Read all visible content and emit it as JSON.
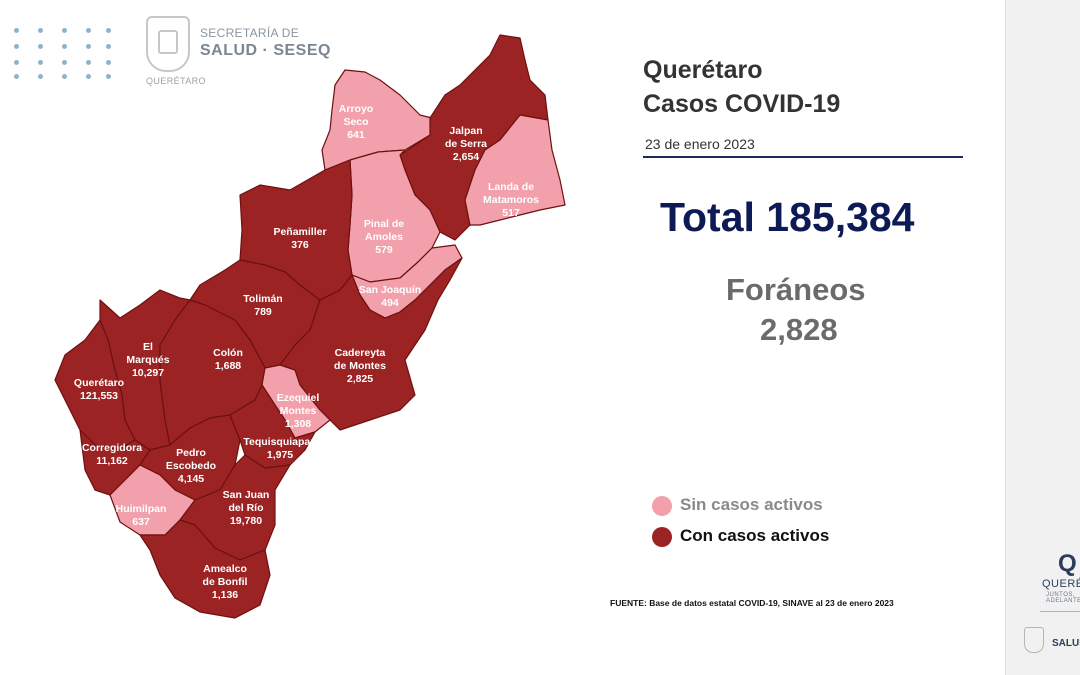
{
  "header": {
    "org_top": "SECRETARÍA DE",
    "org_main": "SALUD · SESEQ",
    "org_sub": "QUERÉTARO"
  },
  "title": {
    "line1": "Querétaro",
    "line2": "Casos COVID-19",
    "date": "23 de enero 2023"
  },
  "totals": {
    "total_text": "Total 185,384",
    "foraneos_label": "Foráneos",
    "foraneos_value": "2,828"
  },
  "legend": {
    "no_active": "Sin casos activos",
    "active": "Con casos activos"
  },
  "source": "FUENTE:  Base de datos estatal  COVID-19,  SINAVE  al 23 de enero 2023",
  "colors": {
    "no_active": "#f2a0ab",
    "active": "#9c2323",
    "title_dark": "#0d1a55"
  },
  "municipalities": [
    {
      "name": "Arroyo Seco",
      "lines": [
        "Arroyo",
        "Seco"
      ],
      "cases": "641",
      "status": "no_active"
    },
    {
      "name": "Jalpan de Serra",
      "lines": [
        "Jalpan",
        "de Serra"
      ],
      "cases": "2,654",
      "status": "active"
    },
    {
      "name": "Landa de Matamoros",
      "lines": [
        "Landa de",
        "Matamoros"
      ],
      "cases": "517",
      "status": "no_active"
    },
    {
      "name": "Pinal de Amoles",
      "lines": [
        "Pinal de",
        "Amoles"
      ],
      "cases": "579",
      "status": "no_active"
    },
    {
      "name": "Peñamiller",
      "lines": [
        "Peñamiller"
      ],
      "cases": "376",
      "status": "active"
    },
    {
      "name": "San Joaquín",
      "lines": [
        "San Joaquín"
      ],
      "cases": "494",
      "status": "no_active"
    },
    {
      "name": "Tolimán",
      "lines": [
        "Tolimán"
      ],
      "cases": "789",
      "status": "active"
    },
    {
      "name": "El Marqués",
      "lines": [
        "El",
        "Marqués"
      ],
      "cases": "10,297",
      "status": "active"
    },
    {
      "name": "Colón",
      "lines": [
        "Colón"
      ],
      "cases": "1,688",
      "status": "active"
    },
    {
      "name": "Cadereyta de Montes",
      "lines": [
        "Cadereyta",
        "de Montes"
      ],
      "cases": "2,825",
      "status": "active"
    },
    {
      "name": "Querétaro",
      "lines": [
        "Querétaro"
      ],
      "cases": "121,553",
      "status": "active"
    },
    {
      "name": "Ezequiel Montes",
      "lines": [
        "Ezequiel",
        "Montes"
      ],
      "cases": "1,308",
      "status": "no_active"
    },
    {
      "name": "Corregidora",
      "lines": [
        "Corregidora"
      ],
      "cases": "11,162",
      "status": "active"
    },
    {
      "name": "Pedro Escobedo",
      "lines": [
        "Pedro",
        "Escobedo"
      ],
      "cases": "4,145",
      "status": "active"
    },
    {
      "name": "Tequisquiapan",
      "lines": [
        "Tequisquiapan"
      ],
      "cases": "1,975",
      "status": "active"
    },
    {
      "name": "Huimilpan",
      "lines": [
        "Huimilpan"
      ],
      "cases": "637",
      "status": "no_active"
    },
    {
      "name": "San Juan del Río",
      "lines": [
        "San Juan",
        "del Río"
      ],
      "cases": "19,780",
      "status": "active"
    },
    {
      "name": "Amealco de Bonfil",
      "lines": [
        "Amealco",
        "de Bonfil"
      ],
      "cases": "1,136",
      "status": "active"
    }
  ],
  "right_panel": {
    "brand_letter": "Q",
    "brand_name": "QUERÉTARO",
    "brand_tag": "JUNTOS, ADELANTE",
    "salud": "SALUD"
  }
}
